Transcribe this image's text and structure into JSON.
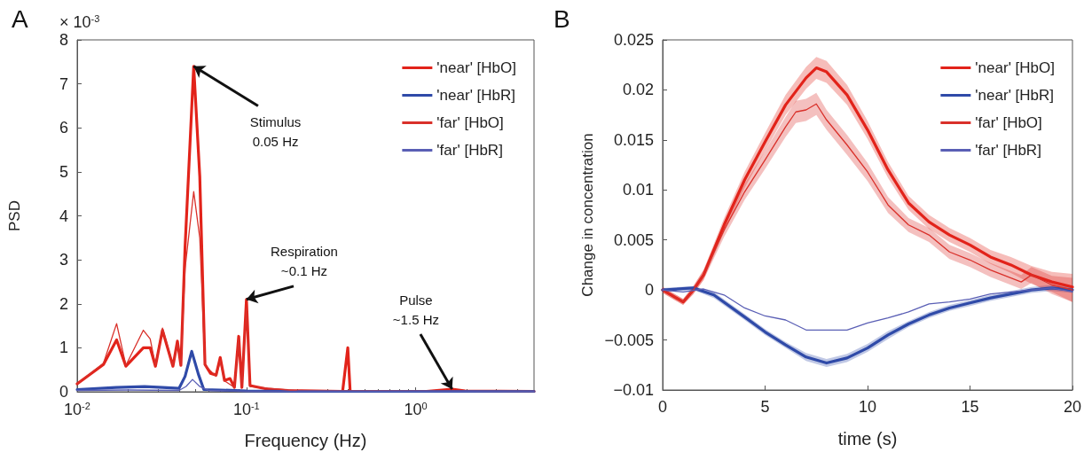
{
  "chart_data": [
    {
      "type": "line",
      "title": "A",
      "xlabel": "Frequency (Hz)",
      "ylabel": "PSD",
      "log": "x",
      "legend": "top right",
      "xlim": [
        0.01,
        5
      ],
      "xticks": [
        {
          "value": 0.01,
          "label": "10$^{-2}$"
        },
        {
          "value": 0.1,
          "label": "10$^{-1}$"
        },
        {
          "value": 1,
          "label": "10$^{0}$"
        }
      ],
      "ylim": [
        0,
        8
      ],
      "yticks": [
        0,
        1,
        2,
        3,
        4,
        5,
        6,
        7,
        8
      ],
      "annotations": [
        "× 10$^{-3}$",
        {
          "text": "Stimulus\n0.05 Hz",
          "x": 0.0488,
          "y": 7.4
        },
        {
          "text": "Respiration\n~0.1 Hz",
          "x": 0.1,
          "y": 2.1
        },
        {
          "text": "Pulse\n~1.5 Hz",
          "x": 1.64,
          "y": 0.06
        }
      ],
      "series": [
        {
          "name": "'near' [HbO]",
          "color": "#e2231a",
          "x": [
            0.01,
            0.0143,
            0.0171,
            0.0194,
            0.0246,
            0.027,
            0.029,
            0.0319,
            0.0368,
            0.0391,
            0.041,
            0.0434,
            0.0488,
            0.053,
            0.0569,
            0.0613,
            0.0662,
            0.07,
            0.0742,
            0.08,
            0.0849,
            0.09,
            0.094,
            0.1,
            0.105,
            0.133,
            0.176,
            0.37,
            0.397,
            0.41,
            1.16,
            1.64,
            1.96,
            5
          ],
          "values": [
            0.18,
            0.62,
            1.18,
            0.58,
            1.0,
            1.0,
            0.58,
            1.4,
            0.58,
            1.15,
            0.6,
            3.3,
            7.4,
            4.9,
            0.62,
            0.42,
            0.38,
            0.78,
            0.26,
            0.3,
            0.1,
            1.26,
            0.1,
            2.1,
            0.14,
            0.06,
            0.03,
            0.01,
            1.0,
            0.01,
            0.01,
            0.06,
            0.02,
            0.01
          ]
        },
        {
          "name": "'near' [HbR]",
          "color": "#2f4aa8",
          "x": [
            0.01,
            0.017,
            0.025,
            0.032,
            0.04,
            0.0434,
            0.0475,
            0.052,
            0.056,
            0.07,
            0.1,
            0.2,
            5
          ],
          "values": [
            0.05,
            0.1,
            0.12,
            0.1,
            0.08,
            0.35,
            0.92,
            0.4,
            0.05,
            0.04,
            0.02,
            0.01,
            0.01
          ]
        },
        {
          "name": "'far' [HbO]",
          "color": "#d9302a",
          "x": [
            0.01,
            0.0143,
            0.0171,
            0.0194,
            0.0246,
            0.027,
            0.029,
            0.0319,
            0.0368,
            0.0391,
            0.041,
            0.0434,
            0.0488,
            0.053,
            0.0569,
            0.0662,
            0.07,
            0.0742,
            0.0849,
            0.09,
            0.094,
            0.1,
            0.105,
            0.2,
            5
          ],
          "values": [
            0.18,
            0.65,
            1.55,
            0.6,
            1.4,
            1.2,
            0.6,
            1.45,
            0.6,
            1.1,
            0.6,
            2.8,
            4.55,
            3.5,
            0.6,
            0.35,
            0.7,
            0.25,
            0.1,
            1.2,
            0.1,
            1.9,
            0.12,
            0.02,
            0.01
          ]
        },
        {
          "name": "'far' [HbR]",
          "color": "#5a5fb5",
          "x": [
            0.01,
            0.02,
            0.04,
            0.044,
            0.048,
            0.053,
            0.06,
            0.1,
            5
          ],
          "values": [
            0.03,
            0.04,
            0.03,
            0.12,
            0.28,
            0.12,
            0.03,
            0.01,
            0.01
          ]
        }
      ]
    },
    {
      "type": "line",
      "title": "B",
      "xlabel": "time (s)",
      "ylabel": "Change in concentration",
      "legend": "top right",
      "xlim": [
        0,
        20
      ],
      "xticks": [
        0,
        5,
        10,
        15,
        20
      ],
      "ylim": [
        -0.01,
        0.025
      ],
      "yticks": [
        {
          "value": -0.01,
          "label": "−0.01"
        },
        {
          "value": -0.005,
          "label": "−0.005"
        },
        0,
        0.005,
        0.01,
        0.015,
        0.02,
        0.025
      ],
      "series": [
        {
          "name": "'near' [HbO]",
          "color": "#e2231a",
          "x": [
            0,
            1,
            1.5,
            2,
            3,
            4,
            5,
            6,
            7,
            7.5,
            8,
            9,
            10,
            11,
            12,
            13,
            14,
            15,
            16,
            17,
            18,
            19,
            20
          ],
          "values": [
            0,
            -0.0012,
            0,
            0.0015,
            0.0065,
            0.011,
            0.0148,
            0.0185,
            0.0212,
            0.0222,
            0.0218,
            0.0195,
            0.016,
            0.012,
            0.0087,
            0.0068,
            0.0055,
            0.0045,
            0.0033,
            0.0025,
            0.0015,
            0.0008,
            0.0003
          ],
          "lower": [
            -0.0003,
            -0.0015,
            -0.0004,
            0.001,
            0.0058,
            0.0102,
            0.0139,
            0.0175,
            0.0201,
            0.0211,
            0.0207,
            0.0185,
            0.0151,
            0.0112,
            0.008,
            0.0061,
            0.0048,
            0.0038,
            0.0026,
            0.0017,
            0.0006,
            -0.0002,
            -0.0012
          ],
          "upper": [
            0.0003,
            -0.0009,
            0.0004,
            0.002,
            0.0072,
            0.0118,
            0.0157,
            0.0195,
            0.0223,
            0.0233,
            0.0229,
            0.0205,
            0.0169,
            0.0128,
            0.0094,
            0.0075,
            0.0062,
            0.0052,
            0.004,
            0.0033,
            0.0024,
            0.0018,
            0.0016
          ]
        },
        {
          "name": "'near' [HbR]",
          "color": "#2f4aa8",
          "x": [
            0,
            1.5,
            2.5,
            4,
            5,
            6,
            7,
            8,
            9,
            10,
            11,
            12,
            13,
            14,
            15,
            16,
            17,
            18,
            19,
            20
          ],
          "values": [
            0,
            0.0002,
            -0.0005,
            -0.0027,
            -0.0042,
            -0.0055,
            -0.0067,
            -0.0073,
            -0.0068,
            -0.0058,
            -0.0045,
            -0.0034,
            -0.0025,
            -0.0018,
            -0.0013,
            -0.0008,
            -0.0004,
            0,
            0.0002,
            0
          ],
          "lower": [
            -0.0002,
            0,
            -0.0008,
            -0.003,
            -0.0045,
            -0.0058,
            -0.0071,
            -0.0077,
            -0.0072,
            -0.0062,
            -0.0049,
            -0.0037,
            -0.0028,
            -0.0021,
            -0.0016,
            -0.0011,
            -0.0007,
            -0.0003,
            -0.0001,
            -0.0003
          ],
          "upper": [
            0.0002,
            0.0004,
            -0.0002,
            -0.0024,
            -0.0039,
            -0.0052,
            -0.0063,
            -0.0069,
            -0.0064,
            -0.0054,
            -0.0041,
            -0.0031,
            -0.0022,
            -0.0015,
            -0.001,
            -0.0005,
            -0.0001,
            0.0003,
            0.0005,
            0.0003
          ]
        },
        {
          "name": "'far' [HbO]",
          "color": "#d9302a",
          "x": [
            0,
            1,
            1.5,
            2,
            3,
            4,
            5,
            6,
            6.5,
            7,
            7.5,
            8,
            9,
            10,
            11,
            12,
            13,
            14,
            15,
            16,
            17,
            17.5,
            18,
            19,
            20
          ],
          "values": [
            0,
            -0.0012,
            0,
            0.0015,
            0.006,
            0.0098,
            0.013,
            0.0163,
            0.0178,
            0.018,
            0.0186,
            0.017,
            0.0145,
            0.0118,
            0.0085,
            0.0065,
            0.0055,
            0.0038,
            0.003,
            0.002,
            0.0012,
            0.0008,
            0.0015,
            0.0005,
            0
          ],
          "lower": [
            -0.0003,
            -0.0015,
            -0.0004,
            0.001,
            0.0053,
            0.009,
            0.0121,
            0.0153,
            0.0167,
            0.0169,
            0.0175,
            0.016,
            0.0135,
            0.0109,
            0.0077,
            0.0058,
            0.0048,
            0.0031,
            0.0023,
            0.0013,
            0.0005,
            0.0001,
            0.0007,
            -0.0004,
            -0.0012
          ],
          "upper": [
            0.0003,
            -0.0009,
            0.0004,
            0.002,
            0.0067,
            0.0106,
            0.0139,
            0.0173,
            0.0189,
            0.0191,
            0.0197,
            0.018,
            0.0155,
            0.0127,
            0.0093,
            0.0072,
            0.0062,
            0.0045,
            0.0037,
            0.0027,
            0.0019,
            0.0015,
            0.0023,
            0.0014,
            0.0012
          ]
        },
        {
          "name": "'far' [HbR]",
          "color": "#5a5fb5",
          "x": [
            0,
            1,
            2,
            3,
            4,
            5,
            6,
            7,
            8,
            9,
            10,
            11,
            12,
            13,
            14,
            15,
            16,
            17,
            18,
            19,
            20
          ],
          "values": [
            0,
            -0.0002,
            0.0001,
            -0.0005,
            -0.0018,
            -0.0026,
            -0.003,
            -0.004,
            -0.004,
            -0.004,
            -0.0033,
            -0.0028,
            -0.0022,
            -0.0014,
            -0.0012,
            -0.0009,
            -0.0004,
            -0.0002,
            0,
            0.0002,
            -0.0002
          ]
        }
      ]
    }
  ]
}
